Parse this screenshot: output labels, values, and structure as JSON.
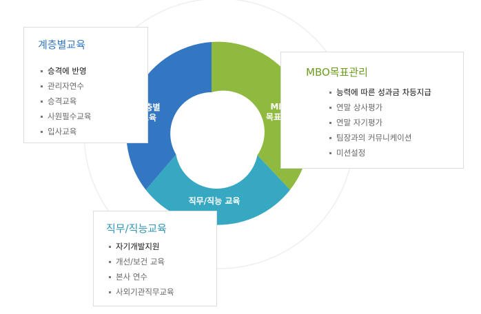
{
  "colors": {
    "hierarchy": "#3377c2",
    "mbo": "#8fba3f",
    "job": "#36a8c2",
    "hierarchy_title": "#3377c2",
    "mbo_title": "#6b9b1e",
    "job_title": "#2f95b4"
  },
  "ring": {
    "hierarchy_label": [
      "계층별",
      "교육"
    ],
    "mbo_label": [
      "MBO",
      "목표관리"
    ],
    "job_label": "직무/직능 교육"
  },
  "cards": {
    "hierarchy": {
      "title": "계층별교육",
      "items": [
        "승격에 반영",
        "관리자연수",
        "승격교육",
        "사원필수교육",
        "입사교육"
      ]
    },
    "mbo": {
      "title": "MBO목표관리",
      "items": [
        "능력에 따른 성과금 차등지급",
        "연말 상사평가",
        "연말 자기평가",
        "팀장과의 커뮤니케이션",
        "미션설정"
      ]
    },
    "job": {
      "title": "직무/직능교육",
      "items": [
        "자기개발지원",
        "개선/보건 교육",
        "본사 연수",
        "사외기관직무교육"
      ]
    }
  }
}
